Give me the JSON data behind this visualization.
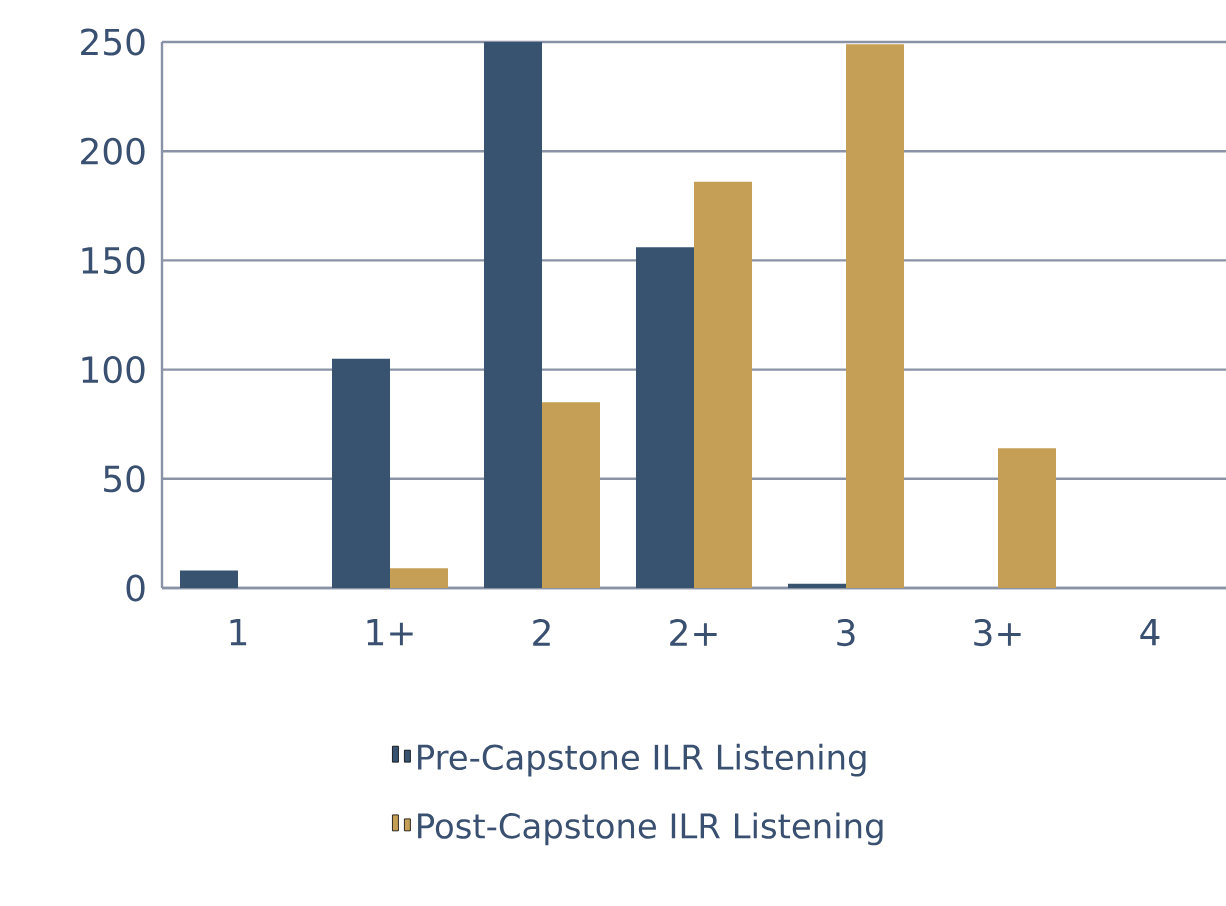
{
  "chart_data": {
    "type": "bar",
    "categories": [
      "1",
      "1+",
      "2",
      "2+",
      "3",
      "3+",
      "4"
    ],
    "series": [
      {
        "name": "Pre-Capstone ILR Listening",
        "color": "#375370",
        "values": [
          8,
          105,
          250,
          156,
          2,
          0,
          0
        ]
      },
      {
        "name": "Post-Capstone ILR Listening",
        "color": "#c49f55",
        "values": [
          0,
          9,
          85,
          186,
          249,
          64,
          0
        ]
      }
    ],
    "ylim": [
      0,
      250
    ],
    "yticks": [
      0,
      50,
      100,
      150,
      200,
      250
    ],
    "grid": "y",
    "legend": "bottom"
  }
}
